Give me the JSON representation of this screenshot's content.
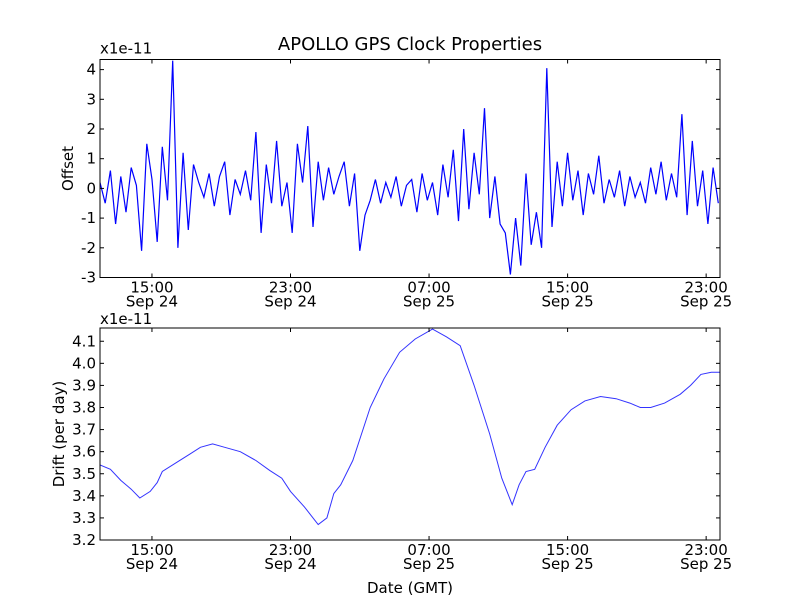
{
  "title": "APOLLO GPS Clock Properties",
  "xlabel": "Date (GMT)",
  "chart_data": [
    {
      "type": "line",
      "title": "APOLLO GPS Clock Properties",
      "ylabel": "Offset",
      "scale_label": "x1e-11",
      "color": "#0000ff",
      "x_units": "hours since Sep 24 12:00 GMT",
      "xlim": [
        0,
        35.8
      ],
      "ylim": [
        -3,
        4.34
      ],
      "yticks": [
        "-3",
        "-2",
        "-1",
        "0",
        "1",
        "2",
        "3",
        "4"
      ],
      "ytick_values": [
        -3,
        -2,
        -1,
        0,
        1,
        2,
        3,
        4
      ],
      "xticks": [
        {
          "value": 3,
          "time": "15:00",
          "date": "Sep 24"
        },
        {
          "value": 11,
          "time": "23:00",
          "date": "Sep 24"
        },
        {
          "value": 19,
          "time": "07:00",
          "date": "Sep 25"
        },
        {
          "value": 27,
          "time": "15:00",
          "date": "Sep 25"
        },
        {
          "value": 35,
          "time": "23:00",
          "date": "Sep 25"
        }
      ],
      "x_step": 0.3,
      "values": [
        0.2,
        -0.5,
        0.6,
        -1.2,
        0.4,
        -0.8,
        0.7,
        0.1,
        -2.1,
        1.5,
        0.3,
        -1.8,
        1.4,
        -0.4,
        4.3,
        -2.0,
        1.2,
        -1.4,
        0.8,
        0.2,
        -0.3,
        0.5,
        -0.6,
        0.4,
        0.9,
        -0.9,
        0.3,
        -0.2,
        0.6,
        -0.4,
        1.9,
        -1.5,
        0.8,
        -0.5,
        1.6,
        -0.6,
        0.2,
        -1.5,
        1.5,
        0.2,
        2.1,
        -1.3,
        0.9,
        -0.4,
        0.7,
        -0.2,
        0.4,
        0.9,
        -0.6,
        0.5,
        -2.1,
        -0.9,
        -0.4,
        0.3,
        -0.5,
        0.2,
        -0.3,
        0.4,
        -0.6,
        0.1,
        0.3,
        -0.8,
        0.5,
        -0.4,
        0.2,
        -0.9,
        0.8,
        -0.3,
        1.3,
        -1.1,
        2.0,
        -0.7,
        1.2,
        -0.2,
        2.7,
        -1.0,
        0.4,
        -1.2,
        -1.5,
        -2.9,
        -1.0,
        -2.6,
        0.5,
        -1.9,
        -0.8,
        -2.0,
        4.05,
        -1.3,
        0.9,
        -0.6,
        1.2,
        -0.4,
        0.6,
        -0.9,
        0.5,
        -0.2,
        1.1,
        -0.5,
        0.3,
        -0.3,
        0.6,
        -0.6,
        0.4,
        -0.3,
        0.2,
        -0.5,
        0.7,
        -0.2,
        0.9,
        -0.4,
        0.5,
        -0.3,
        2.5,
        -0.9,
        1.6,
        -0.6,
        0.6,
        -1.2,
        0.7,
        -0.5
      ]
    },
    {
      "type": "line",
      "ylabel": "Drift (per day)",
      "scale_label": "x1e-11",
      "color": "#3333ff",
      "x_units": "hours since Sep 24 12:00 GMT",
      "xlim": [
        0,
        35.8
      ],
      "ylim": [
        3.2,
        4.16
      ],
      "yticks": [
        "3.2",
        "3.3",
        "3.4",
        "3.5",
        "3.6",
        "3.7",
        "3.8",
        "3.9",
        "4.0",
        "4.1"
      ],
      "ytick_values": [
        3.2,
        3.3,
        3.4,
        3.5,
        3.6,
        3.7,
        3.8,
        3.9,
        4.0,
        4.1
      ],
      "xticks": [
        {
          "value": 3,
          "time": "15:00",
          "date": "Sep 24"
        },
        {
          "value": 11,
          "time": "23:00",
          "date": "Sep 24"
        },
        {
          "value": 19,
          "time": "07:00",
          "date": "Sep 25"
        },
        {
          "value": 27,
          "time": "15:00",
          "date": "Sep 25"
        },
        {
          "value": 35,
          "time": "23:00",
          "date": "Sep 25"
        }
      ],
      "points": [
        [
          0,
          3.54
        ],
        [
          0.6,
          3.52
        ],
        [
          1.2,
          3.47
        ],
        [
          1.8,
          3.43
        ],
        [
          2.3,
          3.39
        ],
        [
          2.9,
          3.42
        ],
        [
          3.3,
          3.46
        ],
        [
          3.6,
          3.51
        ],
        [
          4.4,
          3.55
        ],
        [
          5.2,
          3.59
        ],
        [
          5.8,
          3.62
        ],
        [
          6.5,
          3.635
        ],
        [
          7.2,
          3.62
        ],
        [
          8.1,
          3.6
        ],
        [
          9.0,
          3.56
        ],
        [
          9.8,
          3.515
        ],
        [
          10.5,
          3.48
        ],
        [
          11.0,
          3.42
        ],
        [
          11.8,
          3.35
        ],
        [
          12.3,
          3.3
        ],
        [
          12.6,
          3.27
        ],
        [
          13.1,
          3.3
        ],
        [
          13.5,
          3.41
        ],
        [
          13.9,
          3.45
        ],
        [
          14.6,
          3.56
        ],
        [
          15.6,
          3.8
        ],
        [
          16.4,
          3.93
        ],
        [
          17.3,
          4.05
        ],
        [
          18.2,
          4.11
        ],
        [
          19.2,
          4.155
        ],
        [
          20.0,
          4.12
        ],
        [
          20.8,
          4.08
        ],
        [
          21.6,
          3.9
        ],
        [
          22.5,
          3.68
        ],
        [
          23.2,
          3.48
        ],
        [
          23.8,
          3.36
        ],
        [
          24.2,
          3.45
        ],
        [
          24.6,
          3.51
        ],
        [
          25.1,
          3.52
        ],
        [
          25.7,
          3.62
        ],
        [
          26.4,
          3.72
        ],
        [
          27.2,
          3.79
        ],
        [
          28.0,
          3.83
        ],
        [
          28.9,
          3.85
        ],
        [
          29.8,
          3.84
        ],
        [
          30.6,
          3.82
        ],
        [
          31.2,
          3.8
        ],
        [
          31.8,
          3.8
        ],
        [
          32.6,
          3.82
        ],
        [
          33.5,
          3.86
        ],
        [
          34.1,
          3.9
        ],
        [
          34.7,
          3.95
        ],
        [
          35.3,
          3.96
        ],
        [
          35.8,
          3.96
        ]
      ]
    }
  ]
}
